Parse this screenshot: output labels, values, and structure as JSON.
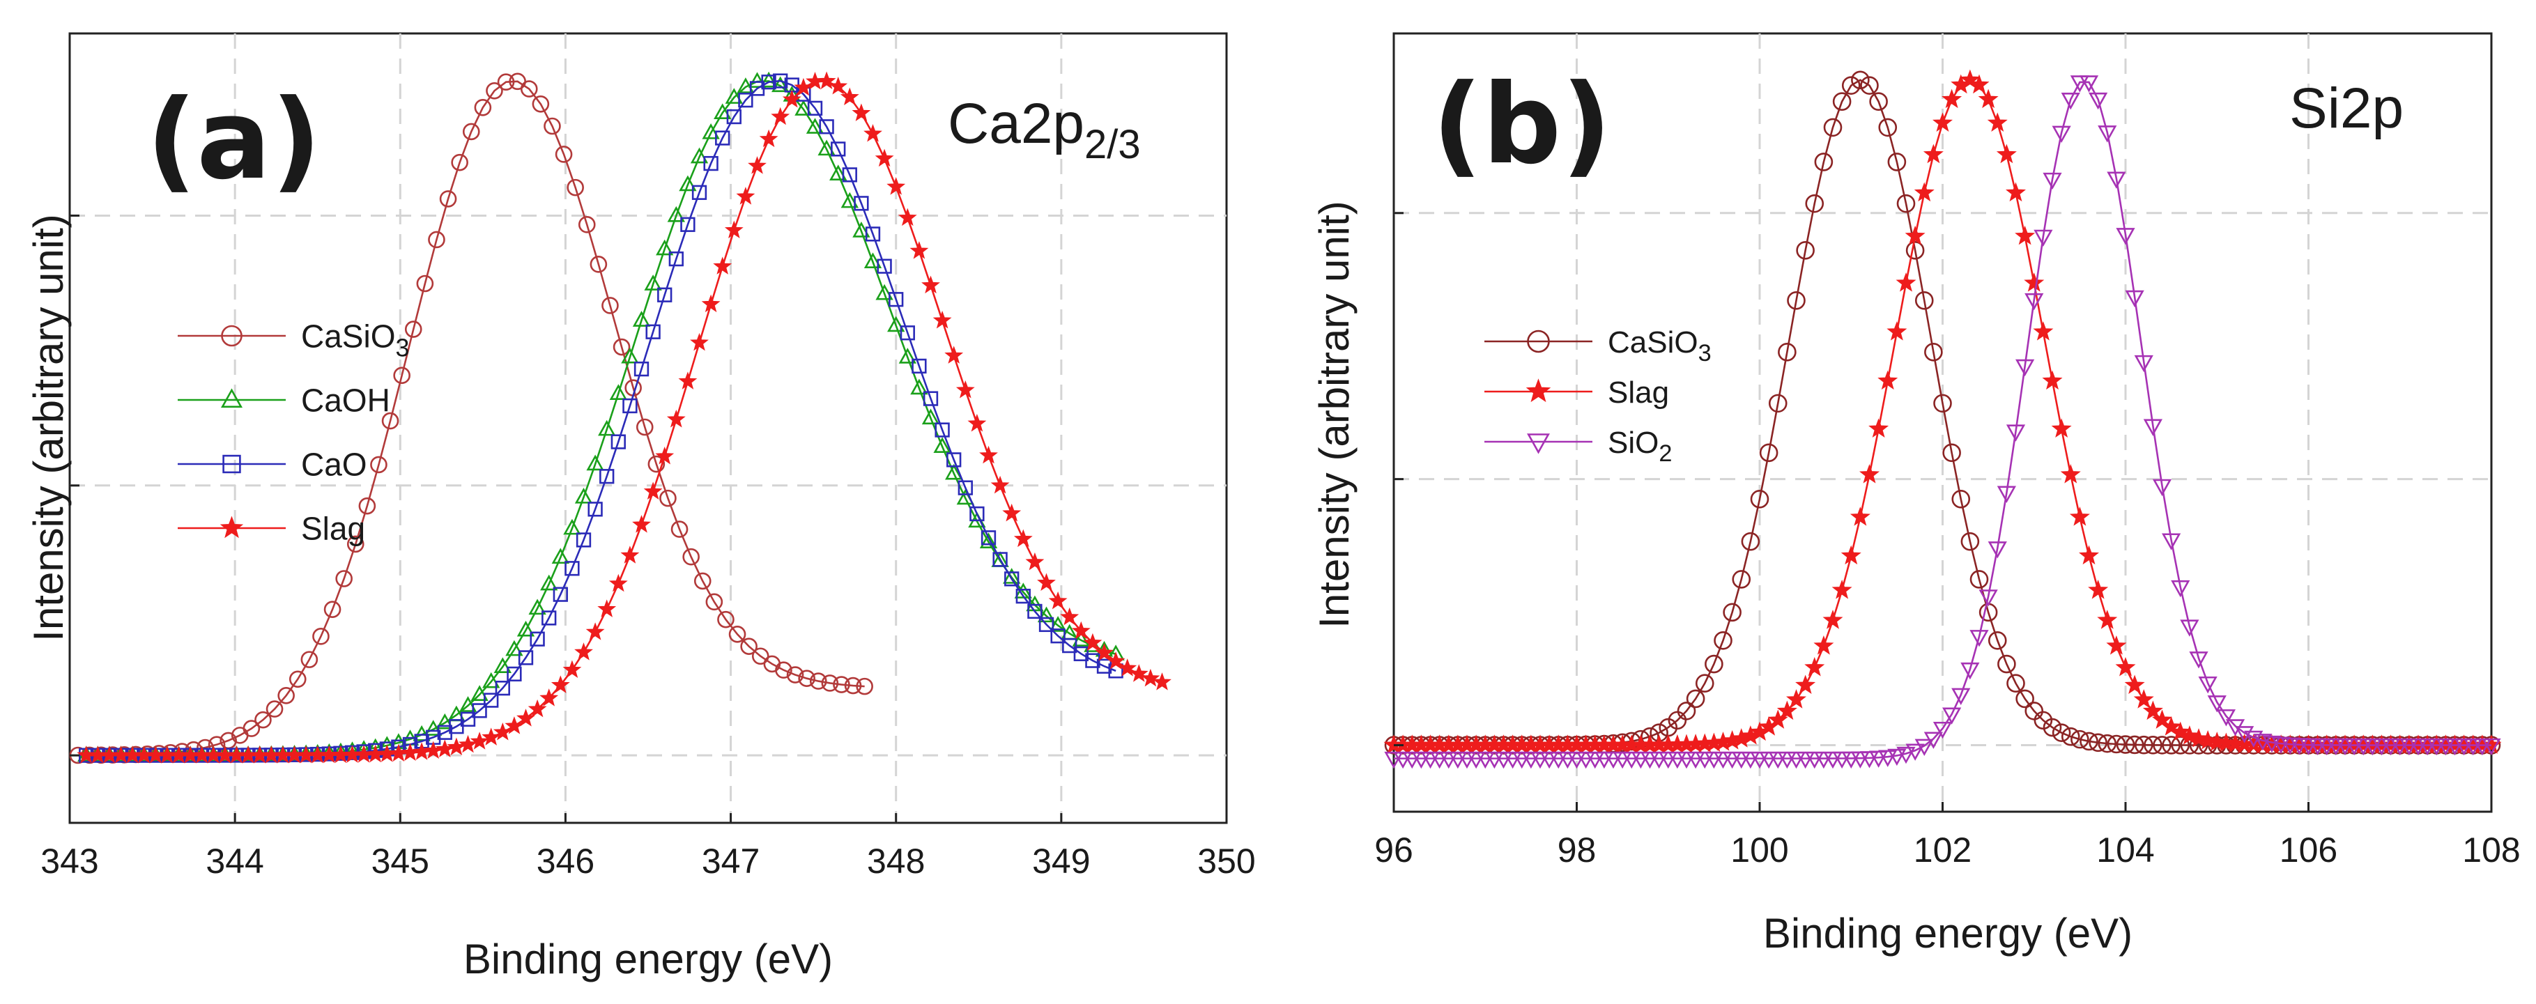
{
  "chart_data": [
    {
      "type": "line",
      "panel_label": "(a)",
      "title_main": "Ca2p",
      "title_sub": "2/3",
      "xlabel": "Binding energy (eV)",
      "ylabel": "Intensity (arbitrary unit)",
      "xlim": [
        343,
        350
      ],
      "ylim": [
        -0.1,
        1.07
      ],
      "xticks": [
        343,
        344,
        345,
        346,
        347,
        348,
        349,
        350
      ],
      "xtick_labels": [
        "343",
        "344",
        "345",
        "346",
        "347",
        "348",
        "349",
        "350"
      ],
      "yticks": [
        0,
        0.4,
        0.8
      ],
      "grid": true,
      "legend_position": "middle-left",
      "series": [
        {
          "name": "CaSiO",
          "name_sub": "3",
          "color": "#b23a3a",
          "marker": "circle",
          "center": 345.68,
          "sigma": 0.62,
          "baseline_left": 0.0,
          "baseline_right": 0.1,
          "peak": 1.0,
          "x_start": 343.05,
          "x_end": 347.78,
          "step": 0.07
        },
        {
          "name": "CaOH",
          "name_sub": "",
          "color": "#1aa01a",
          "marker": "triangle-up",
          "center": 347.2,
          "sigma": 0.78,
          "baseline_left": 0.0,
          "baseline_right": 0.13,
          "peak": 1.0,
          "x_start": 343.1,
          "x_end": 349.3,
          "step": 0.07
        },
        {
          "name": "CaO",
          "name_sub": "",
          "color": "#2b2bb8",
          "marker": "square",
          "center": 347.28,
          "sigma": 0.77,
          "baseline_left": 0.0,
          "baseline_right": 0.1,
          "peak": 1.0,
          "x_start": 343.1,
          "x_end": 349.3,
          "step": 0.07
        },
        {
          "name": "Slag",
          "name_sub": "",
          "color": "#ee1c1c",
          "marker": "star",
          "center": 347.55,
          "sigma": 0.74,
          "baseline_left": 0.0,
          "baseline_right": 0.09,
          "peak": 1.0,
          "x_start": 343.1,
          "x_end": 349.6,
          "step": 0.07
        }
      ]
    },
    {
      "type": "line",
      "panel_label": "(b)",
      "title_main": "Si2p",
      "title_sub": "",
      "xlabel": "Binding energy (eV)",
      "ylabel": "Intensity (arbitrary unit)",
      "xlim": [
        96,
        108
      ],
      "ylim": [
        -0.1,
        1.07
      ],
      "xticks": [
        96,
        98,
        100,
        102,
        104,
        106,
        108
      ],
      "xtick_labels": [
        "96",
        "98",
        "100",
        "102",
        "104",
        "106",
        "108"
      ],
      "yticks": [
        0,
        0.4,
        0.8
      ],
      "grid": true,
      "legend_position": "middle-left",
      "series": [
        {
          "name": "CaSiO",
          "name_sub": "3",
          "color": "#8b2424",
          "marker": "circle",
          "center": 101.1,
          "sigma": 0.78,
          "baseline_left": 0.0,
          "baseline_right": 0.0,
          "peak": 1.0,
          "x_start": 96.0,
          "x_end": 108.0,
          "step": 0.1
        },
        {
          "name": "Slag",
          "name_sub": "",
          "color": "#ee1c1c",
          "marker": "star",
          "center": 102.3,
          "sigma": 0.82,
          "baseline_left": 0.0,
          "baseline_right": 0.0,
          "peak": 1.0,
          "x_start": 96.0,
          "x_end": 108.0,
          "step": 0.1
        },
        {
          "name": "SiO",
          "name_sub": "2",
          "color": "#a632b4",
          "marker": "triangle-down",
          "center": 103.55,
          "sigma": 0.62,
          "baseline_left": -0.02,
          "baseline_right": 0.0,
          "peak": 1.0,
          "x_start": 96.0,
          "x_end": 108.0,
          "step": 0.1
        }
      ]
    }
  ]
}
